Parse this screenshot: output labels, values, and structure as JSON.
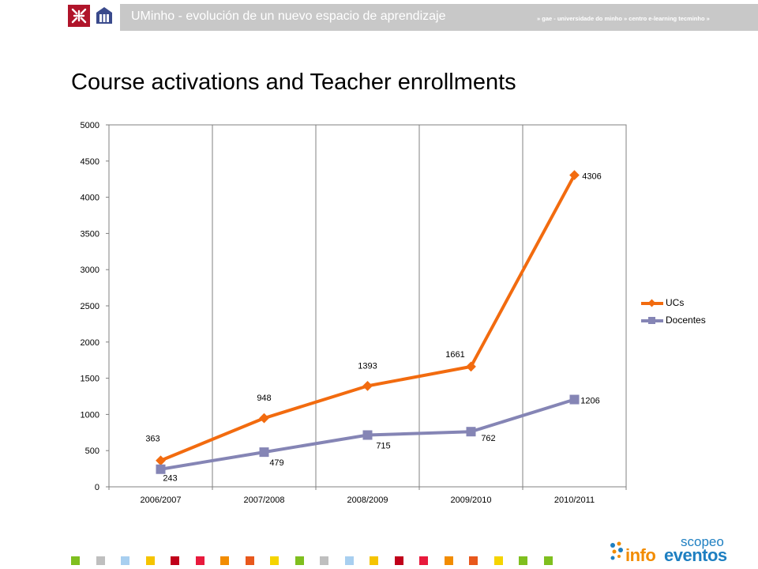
{
  "header": {
    "title": "UMinho - evolución de un nuevo espacio de aprendizaje",
    "subtitle": "» gae - universidade do minho » centro e-learning tecminho »"
  },
  "slide": {
    "title": "Course activations and Teacher enrollments"
  },
  "branding": {
    "scopeo_small": "scopeo",
    "scopeo_info": "info",
    "scopeo_eventos": "eventos"
  },
  "colors": {
    "ucs": "#f26b0f",
    "docentes": "#8585b5",
    "header_bar": "#c8c8c8",
    "uminho_red": "#b0142a"
  },
  "footer_squares": [
    "#7fbf1f",
    "#bfbfbf",
    "#a8cff0",
    "#f5c400",
    "#c0001a",
    "#e8193c",
    "#f28c00",
    "#e8581c",
    "#f5d400",
    "#7fbf1f",
    "#bfbfbf",
    "#a8cff0",
    "#f5c400",
    "#c0001a",
    "#e8193c",
    "#f28c00",
    "#e8581c",
    "#f5d400",
    "#7fbf1f",
    "#7fbf1f"
  ],
  "chart_data": {
    "type": "line",
    "categories": [
      "2006/2007",
      "2007/2008",
      "2008/2009",
      "2009/2010",
      "2010/2011"
    ],
    "series": [
      {
        "name": "UCs",
        "values": [
          363,
          948,
          1393,
          1661,
          4306
        ],
        "color": "#f26b0f",
        "marker": "diamond"
      },
      {
        "name": "Docentes",
        "values": [
          243,
          479,
          715,
          762,
          1206
        ],
        "color": "#8585b5",
        "marker": "square"
      }
    ],
    "ylim": [
      0,
      5000
    ],
    "yticks": [
      0,
      500,
      1000,
      1500,
      2000,
      2500,
      3000,
      3500,
      4000,
      4500,
      5000
    ],
    "grid": "vertical",
    "legend": "right"
  }
}
